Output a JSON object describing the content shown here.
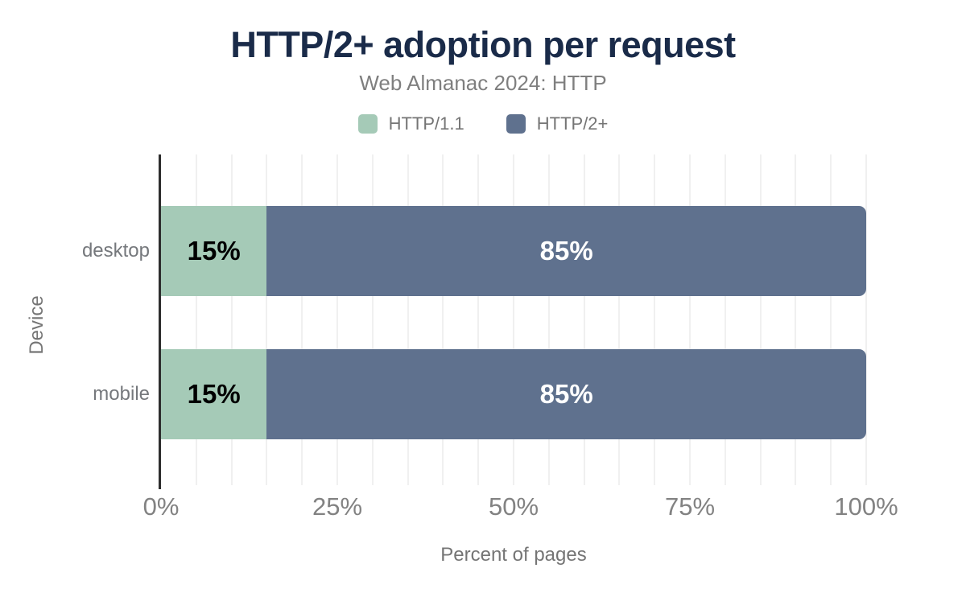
{
  "chart_data": {
    "type": "bar",
    "orientation": "horizontal",
    "stacked": true,
    "title": "HTTP/2+ adoption per request",
    "subtitle": "Web Almanac 2024: HTTP",
    "xlabel": "Percent of pages",
    "ylabel": "Device",
    "xlim": [
      0,
      100
    ],
    "x_tick_values": [
      0,
      25,
      50,
      75,
      100
    ],
    "x_tick_labels": [
      "0%",
      "25%",
      "50%",
      "75%",
      "100%"
    ],
    "minor_grid_step": 5,
    "grid": true,
    "legend_position": "top",
    "categories": [
      "desktop",
      "mobile"
    ],
    "series": [
      {
        "name": "HTTP/1.1",
        "color": "#a5cab7",
        "label_color": "#000000",
        "values": [
          15,
          15
        ],
        "labels": [
          "15%",
          "15%"
        ]
      },
      {
        "name": "HTTP/2+",
        "color": "#5f718e",
        "label_color": "#ffffff",
        "values": [
          85,
          85
        ],
        "labels": [
          "85%",
          "85%"
        ]
      }
    ],
    "colors": {
      "title": "#1a2b49",
      "subtitle": "#7f7f7f",
      "legend_text": "#757575",
      "category_text": "#75787c",
      "tick_text": "#828282",
      "axis_title_text": "#757575",
      "grid": "#f0f0f0",
      "axis_line": "#2d2d2d",
      "background": "#ffffff"
    }
  }
}
